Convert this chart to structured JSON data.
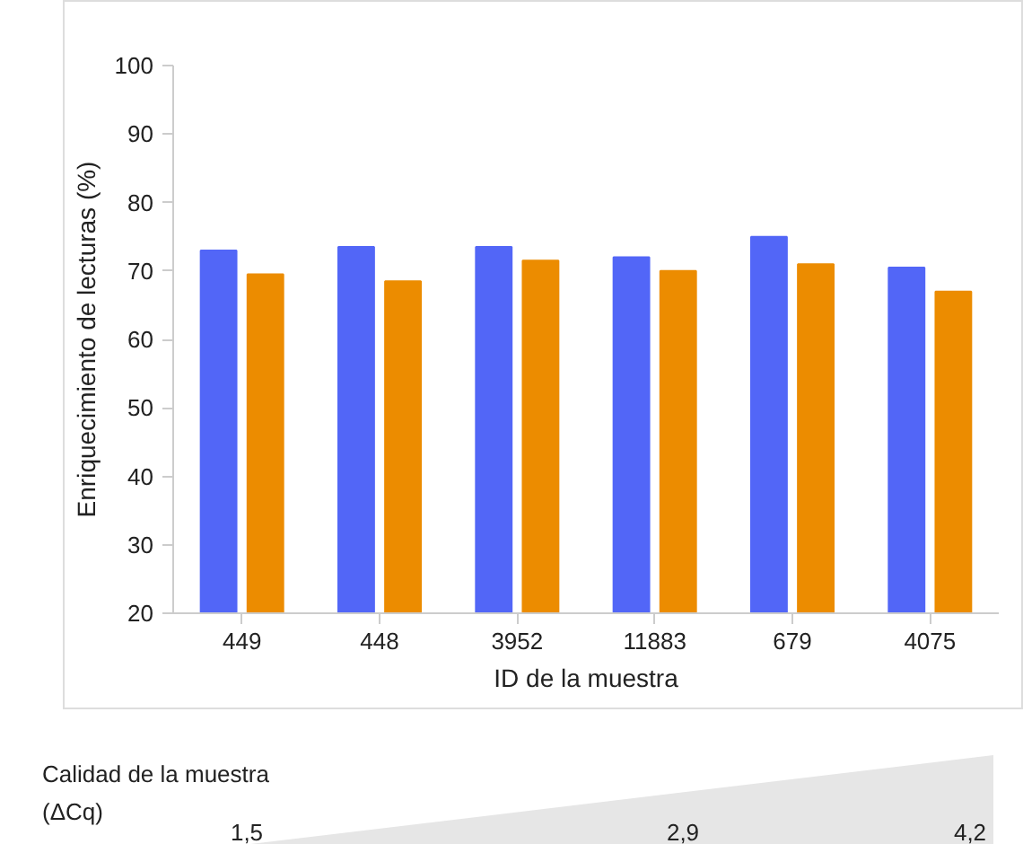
{
  "chart_data": {
    "type": "bar",
    "xlabel": "ID de la muestra",
    "ylabel": "Enriquecimiento de lecturas (%)",
    "categories": [
      "449",
      "448",
      "3952",
      "11883",
      "679",
      "4075"
    ],
    "series": [
      {
        "color": "#5266f7",
        "values": [
          73,
          73.5,
          73.5,
          72,
          75,
          70.5
        ]
      },
      {
        "color": "#ec8c00",
        "values": [
          69.5,
          68.5,
          71.5,
          70,
          71,
          67
        ]
      }
    ],
    "ylim": [
      20,
      100
    ],
    "yticks": [
      20,
      30,
      40,
      50,
      60,
      70,
      80,
      90,
      100
    ],
    "grid": false,
    "annotations": [
      "Calidad de la muestra\n(ΔCq)",
      "1,5",
      "2,9",
      "4,2"
    ]
  }
}
